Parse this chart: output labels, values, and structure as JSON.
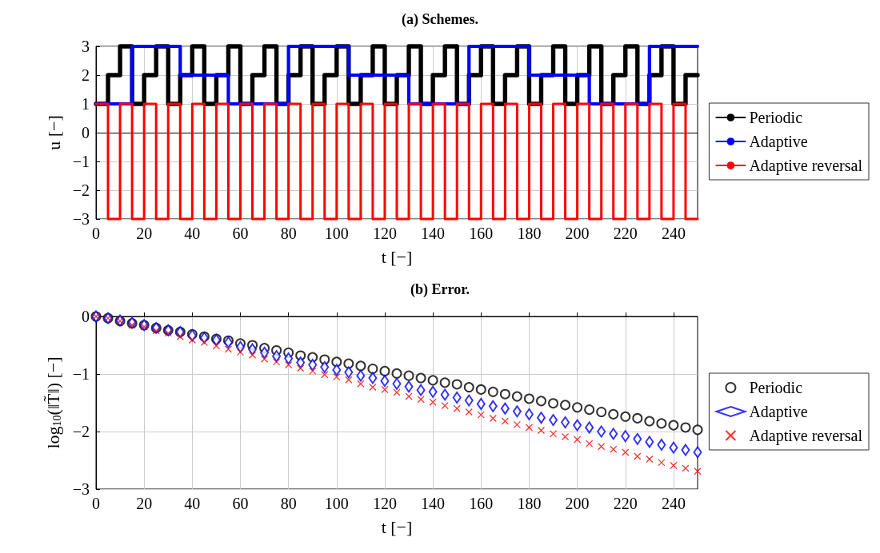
{
  "chart_data": [
    {
      "type": "step",
      "title": "(a) Schemes.",
      "xlabel": "t [−]",
      "ylabel": "u [−]",
      "x": [
        0,
        5,
        10,
        15,
        20,
        25,
        30,
        35,
        40,
        45,
        50,
        55,
        60,
        65,
        70,
        75,
        80,
        85,
        90,
        95,
        100,
        105,
        110,
        115,
        120,
        125,
        130,
        135,
        140,
        145,
        150,
        155,
        160,
        165,
        170,
        175,
        180,
        185,
        190,
        195,
        200,
        205,
        210,
        215,
        220,
        225,
        230,
        235,
        240,
        245,
        250
      ],
      "series": [
        {
          "name": "Periodic",
          "color": "#000000",
          "values": [
            1,
            2,
            3,
            1,
            2,
            3,
            1,
            2,
            3,
            1,
            2,
            3,
            1,
            2,
            3,
            1,
            2,
            3,
            1,
            2,
            3,
            1,
            2,
            3,
            1,
            2,
            3,
            1,
            2,
            3,
            1,
            2,
            3,
            1,
            2,
            3,
            1,
            2,
            3,
            1,
            2,
            3,
            1,
            2,
            3,
            1,
            2,
            3,
            1,
            2,
            2
          ]
        },
        {
          "name": "Adaptive",
          "color": "#0000ff",
          "x": [
            0,
            15,
            35,
            55,
            80,
            105,
            130,
            155,
            180,
            205,
            230,
            250
          ],
          "values": [
            1,
            3,
            2,
            1,
            3,
            2,
            1,
            3,
            2,
            1,
            3,
            3
          ]
        },
        {
          "name": "Adaptive reversal",
          "color": "#ff0000",
          "values": [
            1,
            -3,
            1,
            -3,
            1,
            -3,
            1,
            -3,
            1,
            -3,
            1,
            -3,
            1,
            -3,
            1,
            -3,
            1,
            -3,
            1,
            -3,
            1,
            -3,
            1,
            -3,
            1,
            -3,
            1,
            -3,
            1,
            -3,
            1,
            -3,
            1,
            -3,
            1,
            -3,
            1,
            -3,
            1,
            -3,
            1,
            -3,
            1,
            -3,
            1,
            -3,
            1,
            -3,
            1,
            -3,
            -3
          ]
        }
      ],
      "xlim": [
        0,
        250
      ],
      "xticks": [
        0,
        20,
        40,
        60,
        80,
        100,
        120,
        140,
        160,
        180,
        200,
        220,
        240
      ],
      "ylim": [
        -3,
        3
      ],
      "yticks": [
        -3,
        -2,
        -1,
        0,
        1,
        2,
        3
      ],
      "grid": true,
      "legend": "right",
      "marker": "none",
      "line_style": "solid"
    },
    {
      "type": "scatter",
      "title": "(b) Error.",
      "xlabel": "t [−]",
      "ylabel": "log$_{10}$(‖T̃‖) [−]",
      "x": [
        0,
        5,
        10,
        15,
        20,
        25,
        30,
        35,
        40,
        45,
        50,
        55,
        60,
        65,
        70,
        75,
        80,
        85,
        90,
        95,
        100,
        105,
        110,
        115,
        120,
        125,
        130,
        135,
        140,
        145,
        150,
        155,
        160,
        165,
        170,
        175,
        180,
        185,
        190,
        195,
        200,
        205,
        210,
        215,
        220,
        225,
        230,
        235,
        240,
        245,
        250
      ],
      "series": [
        {
          "name": "Periodic",
          "color": "#000000",
          "marker": "circle",
          "values": [
            0,
            -0.03,
            -0.08,
            -0.12,
            -0.15,
            -0.2,
            -0.24,
            -0.27,
            -0.31,
            -0.35,
            -0.39,
            -0.42,
            -0.47,
            -0.5,
            -0.55,
            -0.59,
            -0.63,
            -0.68,
            -0.71,
            -0.75,
            -0.79,
            -0.82,
            -0.86,
            -0.91,
            -0.95,
            -0.99,
            -1.03,
            -1.07,
            -1.11,
            -1.15,
            -1.18,
            -1.23,
            -1.27,
            -1.31,
            -1.35,
            -1.39,
            -1.43,
            -1.47,
            -1.51,
            -1.54,
            -1.58,
            -1.62,
            -1.66,
            -1.7,
            -1.74,
            -1.77,
            -1.82,
            -1.86,
            -1.89,
            -1.93,
            -1.97
          ]
        },
        {
          "name": "Adaptive",
          "color": "#0000ff",
          "marker": "diamond",
          "values": [
            0,
            -0.03,
            -0.07,
            -0.11,
            -0.15,
            -0.2,
            -0.24,
            -0.27,
            -0.33,
            -0.37,
            -0.41,
            -0.45,
            -0.53,
            -0.57,
            -0.63,
            -0.69,
            -0.73,
            -0.8,
            -0.84,
            -0.88,
            -0.93,
            -0.97,
            -1.03,
            -1.07,
            -1.12,
            -1.17,
            -1.22,
            -1.28,
            -1.31,
            -1.36,
            -1.41,
            -1.46,
            -1.52,
            -1.56,
            -1.6,
            -1.65,
            -1.7,
            -1.76,
            -1.8,
            -1.84,
            -1.89,
            -1.93,
            -2,
            -2.04,
            -2.08,
            -2.13,
            -2.18,
            -2.23,
            -2.28,
            -2.32,
            -2.36
          ]
        },
        {
          "name": "Adaptive reversal",
          "color": "#ff0000",
          "marker": "cross",
          "values": [
            0,
            -0.03,
            -0.08,
            -0.15,
            -0.18,
            -0.25,
            -0.29,
            -0.35,
            -0.41,
            -0.45,
            -0.51,
            -0.57,
            -0.62,
            -0.67,
            -0.74,
            -0.79,
            -0.84,
            -0.9,
            -0.95,
            -1.01,
            -1.05,
            -1.1,
            -1.17,
            -1.23,
            -1.27,
            -1.32,
            -1.39,
            -1.44,
            -1.49,
            -1.55,
            -1.6,
            -1.66,
            -1.71,
            -1.77,
            -1.82,
            -1.88,
            -1.93,
            -1.98,
            -2.04,
            -2.09,
            -2.14,
            -2.21,
            -2.26,
            -2.31,
            -2.36,
            -2.43,
            -2.48,
            -2.54,
            -2.59,
            -2.64,
            -2.69
          ]
        }
      ],
      "xlim": [
        0,
        250
      ],
      "xticks": [
        0,
        20,
        40,
        60,
        80,
        100,
        120,
        140,
        160,
        180,
        200,
        220,
        240
      ],
      "ylim": [
        -3,
        0
      ],
      "yticks": [
        -3,
        -2,
        -1,
        0
      ],
      "grid": true,
      "legend": "right"
    }
  ]
}
